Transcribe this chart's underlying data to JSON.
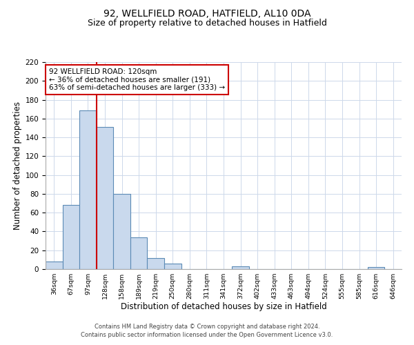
{
  "title1": "92, WELLFIELD ROAD, HATFIELD, AL10 0DA",
  "title2": "Size of property relative to detached houses in Hatfield",
  "xlabel": "Distribution of detached houses by size in Hatfield",
  "ylabel": "Number of detached properties",
  "bar_labels": [
    "36sqm",
    "67sqm",
    "97sqm",
    "128sqm",
    "158sqm",
    "189sqm",
    "219sqm",
    "250sqm",
    "280sqm",
    "311sqm",
    "341sqm",
    "372sqm",
    "402sqm",
    "433sqm",
    "463sqm",
    "494sqm",
    "524sqm",
    "555sqm",
    "585sqm",
    "616sqm",
    "646sqm"
  ],
  "bar_values": [
    8,
    68,
    169,
    151,
    80,
    34,
    12,
    6,
    0,
    0,
    0,
    3,
    0,
    0,
    0,
    0,
    0,
    0,
    0,
    2,
    0
  ],
  "bar_color": "#c9d9ed",
  "bar_edgecolor": "#5b8ab5",
  "bar_linewidth": 0.8,
  "vline_color": "#cc0000",
  "vline_linewidth": 1.5,
  "annotation_title": "92 WELLFIELD ROAD: 120sqm",
  "annotation_line1": "← 36% of detached houses are smaller (191)",
  "annotation_line2": "63% of semi-detached houses are larger (333) →",
  "annotation_box_color": "#cc0000",
  "ylim": [
    0,
    220
  ],
  "yticks": [
    0,
    20,
    40,
    60,
    80,
    100,
    120,
    140,
    160,
    180,
    200,
    220
  ],
  "footer1": "Contains HM Land Registry data © Crown copyright and database right 2024.",
  "footer2": "Contains public sector information licensed under the Open Government Licence v3.0.",
  "bg_color": "#ffffff",
  "grid_color": "#cdd8ea",
  "title1_fontsize": 10,
  "title2_fontsize": 9,
  "xlabel_fontsize": 8.5,
  "ylabel_fontsize": 8.5,
  "footer_fontsize": 6
}
